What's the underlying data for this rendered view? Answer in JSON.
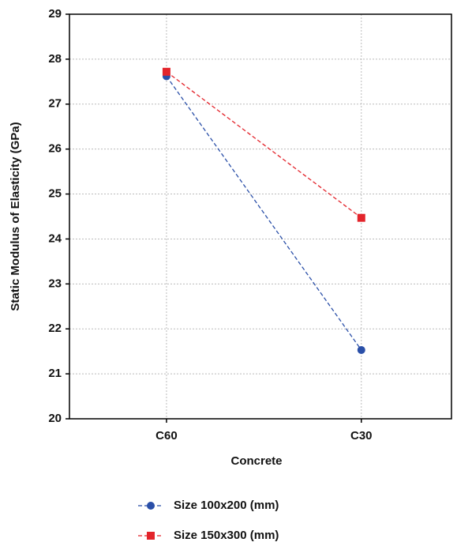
{
  "chart_data": {
    "type": "line",
    "x_label": "Concrete",
    "y_label": "Static Modulus of Elasticity (GPa)",
    "categories": [
      "C60",
      "C30"
    ],
    "series": [
      {
        "name": "Size 100x200 (mm)",
        "color": "#2a4fa8",
        "marker": "circle",
        "values": [
          27.62,
          21.53
        ]
      },
      {
        "name": "Size 150x300 (mm)",
        "color": "#e3242b",
        "marker": "square",
        "values": [
          27.72,
          24.47
        ]
      }
    ],
    "ylim": [
      20,
      29
    ],
    "yticks": [
      20,
      21,
      22,
      23,
      24,
      25,
      26,
      27,
      28,
      29
    ],
    "grid": true,
    "legend": "bottom"
  }
}
